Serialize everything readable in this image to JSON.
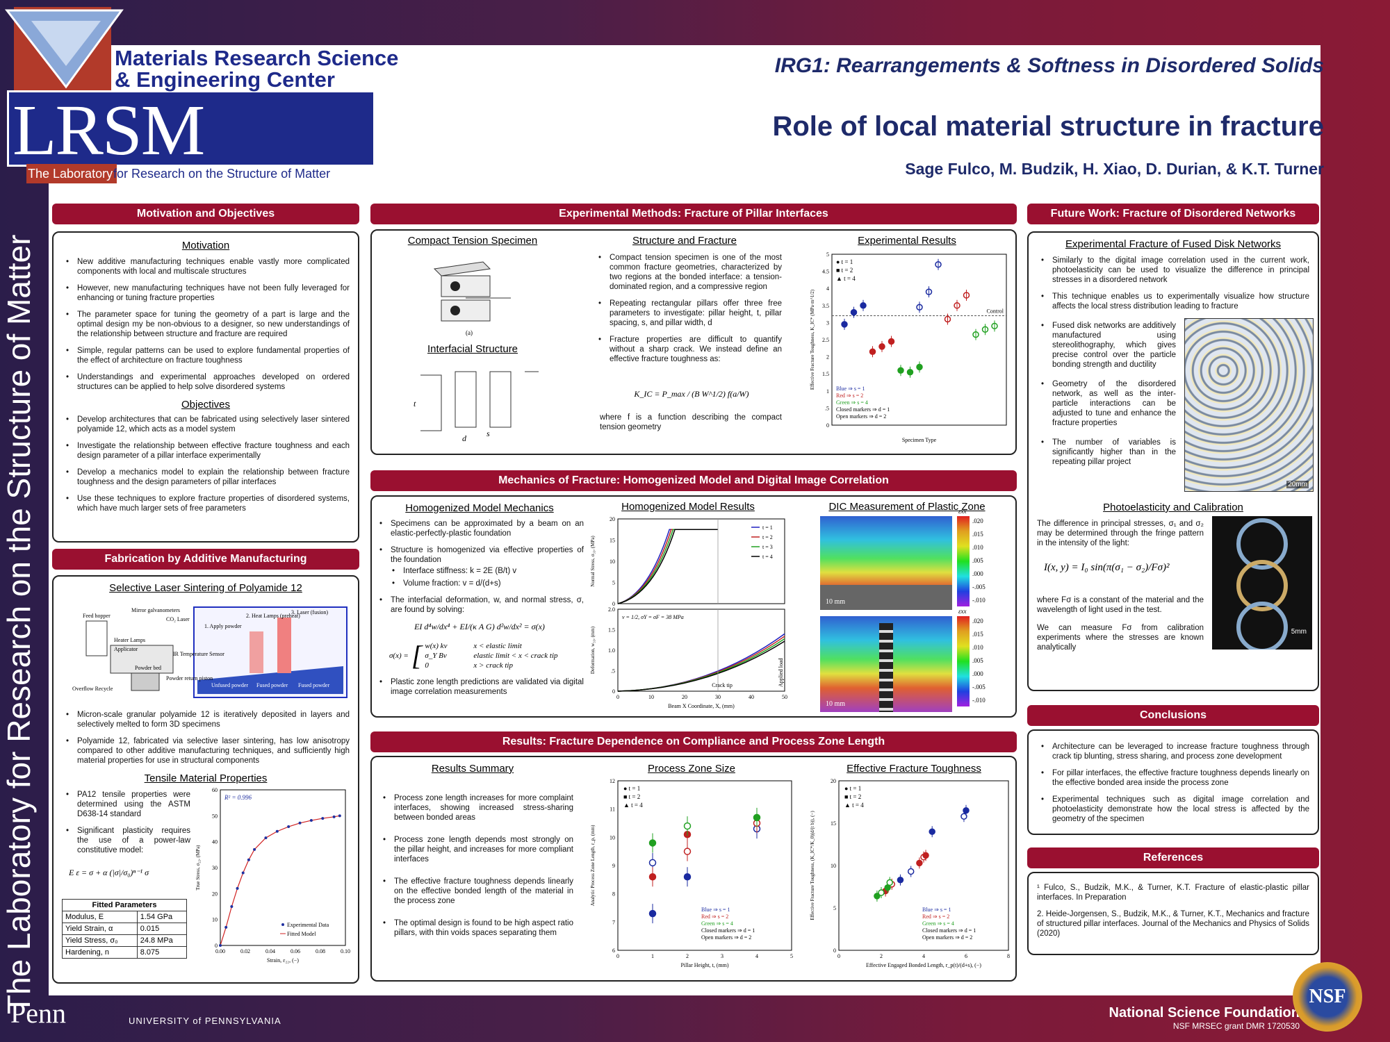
{
  "header": {
    "mrsec_line1": "Materials Research Science",
    "mrsec_line2": "& Engineering Center",
    "lrsm": "LRSM",
    "lab_prefix": "The Laboratory",
    "lab_suffix": "for Research on the Structure of Matter",
    "side_text": "The Laboratory for Research on the Structure of Matter",
    "irg": "IRG1: Rearrangements & Softness in Disordered Solids",
    "title": "Role of local material structure in fracture",
    "authors": "Sage Fulco, M. Budzik, H. Xiao, D. Durian, & K.T. Turner"
  },
  "motivation": {
    "header": "Motivation and Objectives",
    "motivation_title": "Motivation",
    "motivation_items": [
      "New additive manufacturing techniques enable vastly more complicated components with local and multiscale structures",
      "However, new manufacturing techniques have not been fully leveraged for enhancing or tuning fracture properties",
      "The parameter space for tuning the geometry of a part is large and the optimal design my be non-obvious to a designer, so new understandings of the relationship between structure and fracture are required",
      "Simple, regular patterns can be used to explore fundamental properties of the effect of architecture on fracture toughness",
      "Understandings and experimental approaches developed on ordered structures can be applied to help solve disordered systems"
    ],
    "objectives_title": "Objectives",
    "objectives_items": [
      "Develop architectures that can be fabricated using selectively laser sintered polyamide 12, which acts as a model system",
      "Investigate the relationship between effective fracture toughness and each design parameter of a pillar interface experimentally",
      "Develop a mechanics model to explain the relationship between fracture toughness and the design parameters of pillar interfaces",
      "Use these techniques to explore fracture properties of disordered systems, which have much larger sets of free parameters"
    ]
  },
  "fabrication": {
    "header": "Fabrication by Additive Manufacturing",
    "sls_title": "Selective Laser Sintering of Polyamide 12",
    "sls_labels": [
      "Feed hopper",
      "Mirror galvanometers",
      "CO₂ Laser",
      "Heater Lamps",
      "Applicator",
      "Powder bed",
      "IR Temperature Sensor",
      "Powder return piston",
      "Overflow Recycle",
      "1. Apply powder",
      "2. Heat Lamps (preheat)",
      "3. Laser (fusion)",
      "Unfused powder",
      "Fused powder",
      "Fused powder"
    ],
    "items": [
      "Micron-scale granular polyamide 12 is iteratively deposited in layers and selectively melted to form 3D specimens",
      "Polyamide 12, fabricated via selective laser sintering, has low anisotropy compared to other additive manufacturing techniques, and sufficiently high material properties for use in structural components"
    ],
    "tensile_title": "Tensile Material Properties",
    "tensile_items": [
      "PA12 tensile properties were determined using the ASTM D638-14 standard",
      "Significant plasticity requires the use of a power-law constitutive model:"
    ],
    "equation": "E ε = σ + α (|σ|/σ₀)ⁿ⁻¹ σ",
    "table_title": "Fitted Parameters",
    "table_rows": [
      [
        "Modulus, E",
        "1.54 GPa"
      ],
      [
        "Yield Strain, α",
        "0.015"
      ],
      [
        "Yield Stress, σ₀",
        "24.8 MPa"
      ],
      [
        "Hardening, n",
        "8.075"
      ]
    ]
  },
  "methods": {
    "header": "Experimental Methods: Fracture of Pillar Interfaces",
    "ct_title": "Compact Tension Specimen",
    "ct_caption": "(a)",
    "interfacial_title": "Interfacial Structure",
    "interfacial_labels": [
      "t",
      "d",
      "s"
    ],
    "structure_title": "Structure and Fracture",
    "items": [
      "Compact tension specimen is one of the most common fracture geometries, characterized by two regions at the bonded interface: a tension-dominated region, and a compressive region",
      "Repeating rectangular pillars offer three free parameters to investigate: pillar height, t, pillar spacing, s, and pillar width, d",
      "Fracture properties are difficult to quantify without a sharp crack. We instead define an effective fracture toughness as:"
    ],
    "equation": "K_IC = P_max / (B W^1/2) f(a/W)",
    "where_text": "where f is a function describing the compact tension geometry",
    "results_title": "Experimental Results"
  },
  "mechanics": {
    "header": "Mechanics of Fracture: Homogenized Model and Digital Image Correlation",
    "hm_title": "Homogenized Model Mechanics",
    "hm_items": [
      "Specimens can be approximated by a beam on an elastic-perfectly-plastic foundation",
      "Structure is homogenized via effective properties of the foundation"
    ],
    "hm_subitems": [
      "Interface stiffness: k = 2E (B/t) v",
      "Volume fraction: v = d/(d+s)"
    ],
    "hm_item3": "The interfacial deformation, w, and normal stress, σ, are found by solving:",
    "hm_eq1": "EI d⁴w/dx⁴ + EI/(κ A G) d²w/dx² = σ(x)",
    "hm_eq2_cases": [
      [
        "w(x) kv",
        "x < elastic limit"
      ],
      [
        "σ_Y Bv",
        "elastic limit < x < crack tip"
      ],
      [
        "0",
        "x > crack tip"
      ]
    ],
    "hm_eq2_lhs": "σ(x) =",
    "hm_item4": "Plastic zone length predictions are validated via digital image correlation measurements",
    "results_title": "Homogenized Model Results",
    "dic_title": "DIC Measurement of Plastic Zone",
    "dic_scale": "10 mm",
    "dic_symbol": "εxx",
    "dic_ticks": [
      ".020",
      ".015",
      ".010",
      ".005",
      ".000",
      "-.005",
      "-.010"
    ]
  },
  "results": {
    "header": "Results: Fracture Dependence on Compliance and Process Zone Length",
    "summary_title": "Results Summary",
    "items": [
      "Process zone length increases for more complaint interfaces, showing increased stress-sharing between bonded areas",
      "Process zone length depends most strongly on the pillar height, and increases for more compliant interfaces",
      "The effective fracture toughness depends linearly on the effective bonded length of the material in the process zone",
      "The optimal design is found to be high aspect ratio pillars, with thin voids spaces separating them"
    ],
    "pz_title": "Process Zone Size",
    "eft_title": "Effective Fracture Toughness"
  },
  "future": {
    "header": "Future Work: Fracture of Disordered Networks",
    "exp_title": "Experimental Fracture of Fused Disk Networks",
    "items": [
      "Similarly to the digital image correlation used in the current work, photoelasticity can be used to visualize the difference in principal stresses in a disordered network",
      "This technique enables us to experimentally visualize how structure affects the local stress distribution leading to fracture"
    ],
    "items2": [
      "Fused disk networks are additively manufactured using stereolithography, which gives precise control over the particle bonding strength and ductility",
      "Geometry of the disordered network, as well as the inter-particle interactions can be adjusted to tune and enhance the fracture properties",
      "The number of variables is significantly higher than in the repeating pillar project"
    ],
    "photo_title": "Photoelasticity and Calibration",
    "photo_text1": "The difference in principal stresses, σ₁ and σ₂ may be determined through the fringe pattern in the intensity of the light:",
    "photo_eq": "I(x, y) = I₀ sin(π(σ₁ − σ₂)/Fσ)²",
    "photo_text2": "where Fσ is a constant of the material and the wavelength of light used in the test.",
    "photo_text3": "We can measure Fσ from calibration experiments where the stresses are known analytically",
    "scale_1": "20mm",
    "scale_2": "5mm"
  },
  "conclusions": {
    "header": "Conclusions",
    "items": [
      "Architecture can be leveraged to increase fracture toughness through crack tip blunting, stress sharing, and process zone development",
      "For pillar interfaces, the effective fracture toughness depends linearly on the effective bonded area inside the process zone",
      "Experimental techniques such as digital image correlation and photoelasticity demonstrate how the local stress is affected by the geometry of the specimen"
    ]
  },
  "references": {
    "header": "References",
    "items": [
      "¹ Fulco, S., Budzik, M.K., & Turner, K.T. Fracture of elastic-plastic pillar interfaces. In Preparation",
      "2. Heide-Jorgensen, S., Budzik, M.K., & Turner, K.T., Mechanics and fracture of structured pillar interfaces. Journal of the Mechanics and Physics of Solids (2020)"
    ]
  },
  "footer": {
    "penn": "Penn",
    "upenn": "UNIVERSITY of PENNSYLVANIA",
    "nsf": "National Science Foundation",
    "grant": "NSF MRSEC grant DMR 1720530",
    "nsf_logo": "NSF"
  },
  "chart_data": [
    {
      "type": "scatter",
      "title": "Experimental Results",
      "xlabel": "Specimen Type",
      "ylabel": "Effective Fracture Toughness, K_IC* (MPa·m^1/2)",
      "ylim": [
        0,
        5
      ],
      "yticks": [
        "0",
        ".5",
        "1",
        "1.5",
        "2",
        "2.5",
        "3",
        "3.5",
        "4",
        "4.5",
        "5"
      ],
      "control_value": 3.2,
      "control_label": "Control",
      "legend_markers": [
        "t = 1",
        "t = 2",
        "t = 4"
      ],
      "legend_colors": [
        "Blue ⇒ s = 1",
        "Red ⇒ s = 2",
        "Green ⇒ s = 4",
        "Closed markers ⇒ d = 1",
        "Open markers ⇒ d = 2"
      ],
      "series": [
        {
          "name": "Blue",
          "color": "#1a2aa0",
          "x": [
            1,
            2,
            3,
            9,
            10,
            11
          ],
          "y": [
            2.95,
            3.3,
            3.5,
            3.45,
            3.9,
            4.7
          ]
        },
        {
          "name": "Red",
          "color": "#c02020",
          "x": [
            4,
            5,
            6,
            12,
            13,
            14
          ],
          "y": [
            2.15,
            2.3,
            2.45,
            3.1,
            3.5,
            3.8
          ]
        },
        {
          "name": "Green",
          "color": "#20a020",
          "x": [
            7,
            8,
            9,
            15,
            16,
            17
          ],
          "y": [
            1.6,
            1.55,
            1.7,
            2.65,
            2.8,
            2.9
          ]
        }
      ]
    },
    {
      "type": "line",
      "title": "Homogenized Model Results (stress)",
      "xlabel": "",
      "ylabel": "Normal Stress, σ₃₃, (MPa)",
      "ylim": [
        0,
        20
      ],
      "xlim": [
        0,
        55
      ],
      "yticks": [
        "0",
        "5",
        "10",
        "15",
        "20"
      ],
      "legend": [
        "t = 1",
        "t = 2",
        "t = 3",
        "t = 4"
      ],
      "colors": [
        "#2020c0",
        "#c02020",
        "#20a020",
        "#000000"
      ],
      "plateau": 17.5
    },
    {
      "type": "line",
      "title": "Homogenized Model Results (deformation)",
      "xlabel": "Beam X Coordinate, X, (mm)",
      "ylabel": "Deformation, w₃₃, (mm)",
      "ylim": [
        0,
        2.0
      ],
      "xlim": [
        0,
        55
      ],
      "xticks": [
        "0",
        "10",
        "20",
        "30",
        "40",
        "50"
      ],
      "yticks": [
        "0",
        ".5",
        "1.0",
        "1.5",
        "2.0"
      ],
      "annotation": "v = 1/2, σY = σF = 38 MPa",
      "crack_tip": "Crack tip",
      "applied_load": "Applied load"
    },
    {
      "type": "scatter",
      "title": "Process Zone Size",
      "xlabel": "Pillar Height, t, (mm)",
      "ylabel": "Analytic Process Zone Length, r_p, (mm)",
      "xlim": [
        0,
        5
      ],
      "ylim": [
        6,
        12
      ],
      "xticks": [
        "0",
        "1",
        "2",
        "3",
        "4",
        "5"
      ],
      "yticks": [
        "6",
        "7",
        "8",
        "9",
        "10",
        "11",
        "12"
      ],
      "legend_markers": [
        "t = 1",
        "t = 2",
        "t = 4"
      ],
      "legend_colors": [
        "Blue ⇒ s = 1",
        "Red ⇒ s = 2",
        "Green ⇒ s = 4",
        "Closed markers ⇒ d = 1",
        "Open markers ⇒ d = 2"
      ],
      "series": [
        {
          "name": "Blue",
          "color": "#1a2aa0",
          "x": [
            1,
            1,
            2,
            4
          ],
          "y": [
            7.3,
            9.1,
            8.6,
            10.3
          ]
        },
        {
          "name": "Red",
          "color": "#c02020",
          "x": [
            1,
            2,
            2,
            4
          ],
          "y": [
            8.6,
            9.5,
            10.1,
            10.5
          ]
        },
        {
          "name": "Green",
          "color": "#20a020",
          "x": [
            1,
            2,
            4
          ],
          "y": [
            9.8,
            10.4,
            10.7
          ]
        }
      ]
    },
    {
      "type": "scatter",
      "title": "Effective Fracture Toughness",
      "xlabel": "Effective Engaged Bonded Length, r_p(t)/(d+s), (−)",
      "ylabel": "Effective Fracture Toughness, (K_IC*/K_0)(d/(t b)), (−)",
      "xlim": [
        0,
        8
      ],
      "ylim": [
        0,
        20
      ],
      "xticks": [
        "0",
        "2",
        "4",
        "6",
        "8"
      ],
      "yticks": [
        "0",
        "5",
        "10",
        "15",
        "20"
      ],
      "legend_markers": [
        "t = 1",
        "t = 2",
        "t = 4"
      ],
      "legend_colors": [
        "Blue ⇒ s = 1",
        "Red ⇒ s = 2",
        "Green ⇒ s = 4",
        "Closed markers ⇒ d = 1",
        "Open markers ⇒ d = 2"
      ],
      "series": [
        {
          "name": "Blue",
          "color": "#1a2aa0",
          "x": [
            2.9,
            3.4,
            4.4,
            5.9,
            6.0
          ],
          "y": [
            8.3,
            9.3,
            14.0,
            15.8,
            16.5
          ]
        },
        {
          "name": "Red",
          "color": "#c02020",
          "x": [
            2.2,
            2.5,
            3.8,
            4.0,
            4.1
          ],
          "y": [
            7.0,
            7.8,
            10.3,
            11.0,
            11.2
          ]
        },
        {
          "name": "Green",
          "color": "#20a020",
          "x": [
            1.8,
            2.0,
            2.3,
            2.4
          ],
          "y": [
            6.4,
            6.8,
            7.4,
            8.0
          ]
        }
      ]
    },
    {
      "type": "line",
      "title": "Tensile Material Properties",
      "xlabel": "Strain, ε₂₂, (−)",
      "ylabel": "True Stress, σ₂₂, (MPa)",
      "xlim": [
        0,
        0.11
      ],
      "ylim": [
        0,
        60
      ],
      "xticks": [
        "0.00",
        "0.02",
        "0.04",
        "0.06",
        "0.08",
        "0.10"
      ],
      "yticks": [
        "0",
        "10",
        "20",
        "30",
        "40",
        "50",
        "60"
      ],
      "r2": "R² = 0.996",
      "legend": [
        "Experimental Data",
        "Fitted Model"
      ],
      "x": [
        0,
        0.005,
        0.01,
        0.015,
        0.02,
        0.025,
        0.03,
        0.04,
        0.05,
        0.06,
        0.07,
        0.08,
        0.09,
        0.1,
        0.105
      ],
      "y": [
        0,
        7,
        15,
        22,
        28,
        33,
        37,
        41.5,
        44,
        45.8,
        47.2,
        48.2,
        49.0,
        49.6,
        50
      ]
    }
  ]
}
